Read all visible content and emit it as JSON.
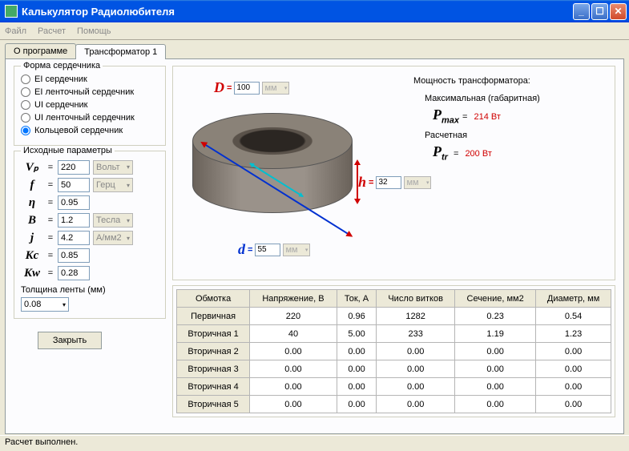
{
  "window": {
    "title": "Калькулятор Радиолюбителя"
  },
  "menu": {
    "file": "Файл",
    "calc": "Расчет",
    "help": "Помощь"
  },
  "tabs": {
    "about": "О программе",
    "tr1": "Трансформатор 1"
  },
  "coreShape": {
    "legend": "Форма сердечника",
    "opts": [
      "EI сердечник",
      "EI ленточный сердечник",
      "UI сердечник",
      "UI ленточный сердечник",
      "Кольцевой сердечник"
    ],
    "selected": 4
  },
  "params": {
    "legend": "Исходные параметры",
    "Vp": {
      "sym": "Vₚ",
      "val": "220",
      "unit": "Вольт"
    },
    "f": {
      "sym": "f",
      "val": "50",
      "unit": "Герц"
    },
    "eta": {
      "sym": "η",
      "val": "0.95",
      "unit": ""
    },
    "B": {
      "sym": "B",
      "val": "1.2",
      "unit": "Тесла"
    },
    "j": {
      "sym": "j",
      "val": "4.2",
      "unit": "А/мм2"
    },
    "Kc": {
      "sym": "Kc",
      "val": "0.85",
      "unit": ""
    },
    "Kw": {
      "sym": "Kw",
      "val": "0.28",
      "unit": ""
    }
  },
  "thickness": {
    "label": "Толщина ленты (мм)",
    "val": "0.08"
  },
  "btnClose": "Закрыть",
  "dims": {
    "D": {
      "sym": "D",
      "val": "100",
      "unit": "мм"
    },
    "d": {
      "sym": "d",
      "val": "55",
      "unit": "мм"
    },
    "h": {
      "sym": "h",
      "val": "32",
      "unit": "мм"
    }
  },
  "power": {
    "title": "Мощность трансформатора:",
    "maxLabel": "Максимальная (габаритная)",
    "maxSym": "Pmax",
    "maxVal": "214 Вт",
    "trLabel": "Расчетная",
    "trSym": "Ptr",
    "trVal": "200 Вт"
  },
  "table": {
    "headers": [
      "Обмотка",
      "Напряжение, В",
      "Ток, А",
      "Число витков",
      "Сечение, мм2",
      "Диаметр, мм"
    ],
    "rows": [
      [
        "Первичная",
        "220",
        "0.96",
        "1282",
        "0.23",
        "0.54"
      ],
      [
        "Вторичная 1",
        "40",
        "5.00",
        "233",
        "1.19",
        "1.23"
      ],
      [
        "Вторичная 2",
        "0.00",
        "0.00",
        "0.00",
        "0.00",
        "0.00"
      ],
      [
        "Вторичная 3",
        "0.00",
        "0.00",
        "0.00",
        "0.00",
        "0.00"
      ],
      [
        "Вторичная 4",
        "0.00",
        "0.00",
        "0.00",
        "0.00",
        "0.00"
      ],
      [
        "Вторичная 5",
        "0.00",
        "0.00",
        "0.00",
        "0.00",
        "0.00"
      ]
    ]
  },
  "status": "Расчет выполнен.",
  "colors": {
    "accent_red": "#d00000",
    "accent_blue": "#0030d0",
    "accent_cyan": "#00c0d0"
  }
}
